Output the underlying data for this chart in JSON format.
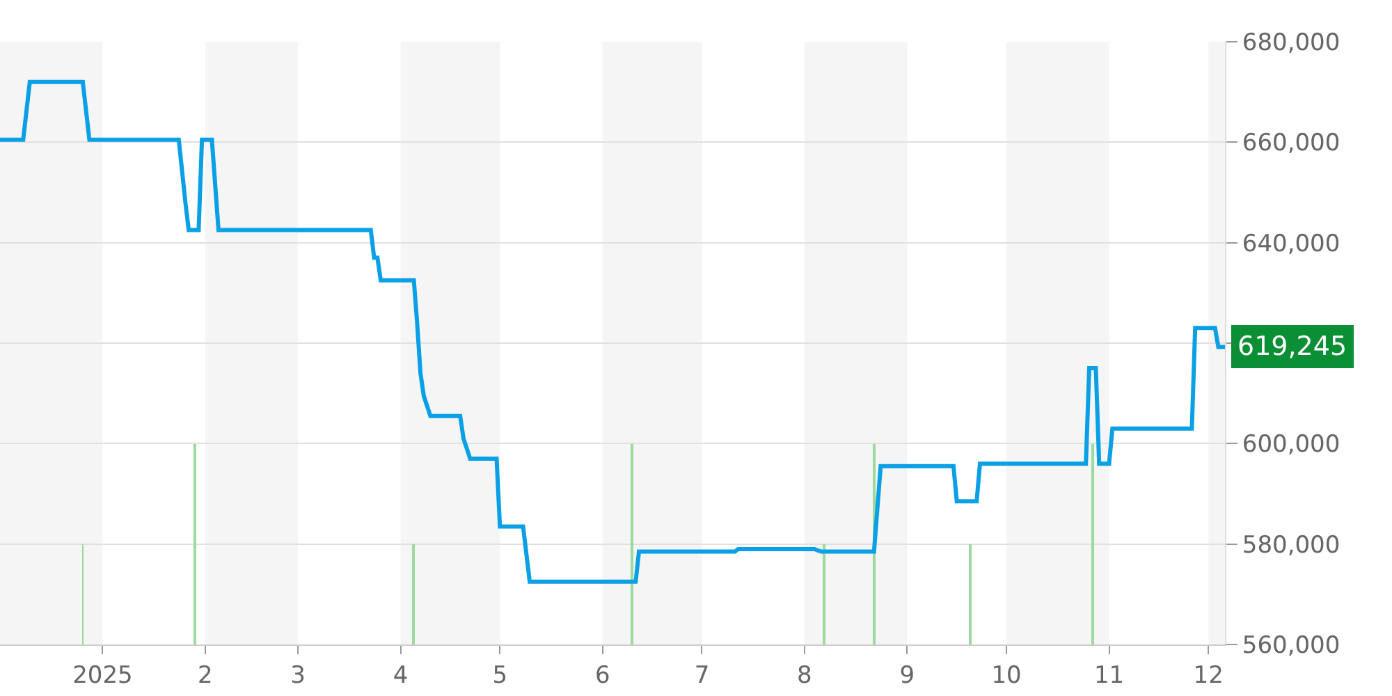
{
  "chart_data": {
    "type": "line",
    "xlim": [
      "2024-12-01",
      "2025-12-06"
    ],
    "xticks": [
      {
        "value": "2025-01-01",
        "label": "2025"
      },
      {
        "value": "2025-02-01",
        "label": "2"
      },
      {
        "value": "2025-03-01",
        "label": "3"
      },
      {
        "value": "2025-04-01",
        "label": "4"
      },
      {
        "value": "2025-05-01",
        "label": "5"
      },
      {
        "value": "2025-06-01",
        "label": "6"
      },
      {
        "value": "2025-07-01",
        "label": "7"
      },
      {
        "value": "2025-08-01",
        "label": "8"
      },
      {
        "value": "2025-09-01",
        "label": "9"
      },
      {
        "value": "2025-10-01",
        "label": "10"
      },
      {
        "value": "2025-11-01",
        "label": "11"
      },
      {
        "value": "2025-12-01",
        "label": "12"
      }
    ],
    "ylim": [
      560000,
      680000
    ],
    "yticks": [
      {
        "value": 560000,
        "label": "560,000"
      },
      {
        "value": 580000,
        "label": "580,000"
      },
      {
        "value": 600000,
        "label": "600,000"
      },
      {
        "value": 620000,
        "label": null
      },
      {
        "value": 640000,
        "label": "640,000"
      },
      {
        "value": 660000,
        "label": "660,000"
      },
      {
        "value": 680000,
        "label": "680,000"
      }
    ],
    "grid": "y",
    "series": [
      {
        "type": "bar",
        "color": "#9cd99c",
        "x": [
          "2024-12-26",
          "2025-01-29",
          "2025-04-05",
          "2025-06-10",
          "2025-08-07",
          "2025-08-22",
          "2025-09-20",
          "2025-10-27"
        ],
        "values": [
          580000,
          600000,
          580000,
          600000,
          580000,
          600000,
          580000,
          600000
        ]
      },
      {
        "color": "#0aa0e6",
        "x": [
          "2024-12-01",
          "2024-12-08",
          "2024-12-10",
          "2024-12-26",
          "2024-12-28",
          "2025-01-24",
          "2025-01-26",
          "2025-01-27",
          "2025-01-30",
          "2025-01-31",
          "2025-02-03",
          "2025-02-05",
          "2025-03-23",
          "2025-03-24",
          "2025-03-25",
          "2025-03-26",
          "2025-04-05",
          "2025-04-06",
          "2025-04-07",
          "2025-04-08",
          "2025-04-10",
          "2025-04-19",
          "2025-04-20",
          "2025-04-22",
          "2025-04-30",
          "2025-05-01",
          "2025-05-08",
          "2025-05-10",
          "2025-06-11",
          "2025-06-12",
          "2025-07-11",
          "2025-07-12",
          "2025-08-04",
          "2025-08-06",
          "2025-08-22",
          "2025-08-24",
          "2025-09-15",
          "2025-09-16",
          "2025-09-22",
          "2025-09-23",
          "2025-10-25",
          "2025-10-26",
          "2025-10-28",
          "2025-10-29",
          "2025-11-01",
          "2025-11-02",
          "2025-11-26",
          "2025-11-27",
          "2025-12-03",
          "2025-12-04",
          "2025-12-06"
        ],
        "values": [
          660500,
          660500,
          672000,
          672000,
          660500,
          660500,
          648000,
          642500,
          642500,
          660500,
          660500,
          642500,
          642500,
          637000,
          637000,
          632500,
          632500,
          624000,
          614000,
          609500,
          605500,
          605500,
          601000,
          597000,
          597000,
          583500,
          583500,
          572500,
          572500,
          578500,
          578500,
          579000,
          579000,
          578500,
          578500,
          595500,
          595500,
          588500,
          588500,
          596000,
          596000,
          615000,
          615000,
          596000,
          596000,
          603000,
          603000,
          623000,
          623000,
          619245,
          619245
        ]
      }
    ],
    "bands": [
      {
        "axis": "x",
        "from": "2024-12-01",
        "to": "2025-01-01",
        "color": "#f5f5f5"
      },
      {
        "axis": "x",
        "from": "2025-02-01",
        "to": "2025-03-01",
        "color": "#f5f5f5"
      },
      {
        "axis": "x",
        "from": "2025-04-01",
        "to": "2025-05-01",
        "color": "#f5f5f5"
      },
      {
        "axis": "x",
        "from": "2025-06-01",
        "to": "2025-07-01",
        "color": "#f5f5f5"
      },
      {
        "axis": "x",
        "from": "2025-08-01",
        "to": "2025-09-01",
        "color": "#f5f5f5"
      },
      {
        "axis": "x",
        "from": "2025-10-01",
        "to": "2025-11-01",
        "color": "#f5f5f5"
      },
      {
        "axis": "x",
        "from": "2025-12-01",
        "to": "2025-12-06",
        "color": "#f5f5f5"
      }
    ],
    "annotations": [
      {
        "text": "619,245",
        "x": "2025-12-06",
        "y": 619245
      }
    ]
  }
}
